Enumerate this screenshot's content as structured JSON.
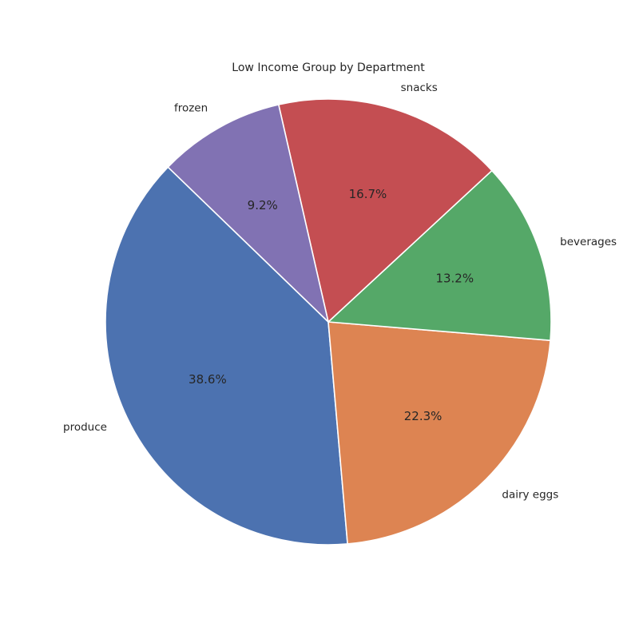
{
  "chart_data": {
    "type": "pie",
    "title": "Low Income Group by Department",
    "slices": [
      {
        "label": "produce",
        "value": 38.6,
        "pct_label": "38.6%",
        "color": "#4c72b0"
      },
      {
        "label": "dairy eggs",
        "value": 22.3,
        "pct_label": "22.3%",
        "color": "#dd8452"
      },
      {
        "label": "beverages",
        "value": 13.2,
        "pct_label": "13.2%",
        "color": "#55a868"
      },
      {
        "label": "snacks",
        "value": 16.7,
        "pct_label": "16.7%",
        "color": "#c44e52"
      },
      {
        "label": "frozen",
        "value": 9.2,
        "pct_label": "9.2%",
        "color": "#8172b3"
      }
    ],
    "legend": "none",
    "edge_color": "#ffffff"
  }
}
